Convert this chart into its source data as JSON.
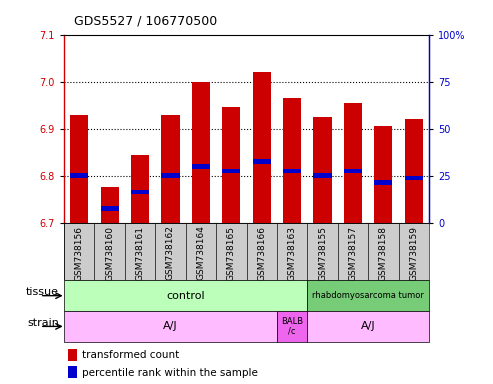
{
  "title": "GDS5527 / 106770500",
  "samples": [
    "GSM738156",
    "GSM738160",
    "GSM738161",
    "GSM738162",
    "GSM738164",
    "GSM738165",
    "GSM738166",
    "GSM738163",
    "GSM738155",
    "GSM738157",
    "GSM738158",
    "GSM738159"
  ],
  "bar_bottom": 6.7,
  "bar_tops": [
    6.93,
    6.775,
    6.845,
    6.93,
    7.0,
    6.945,
    7.02,
    6.965,
    6.925,
    6.955,
    6.905,
    6.92
  ],
  "percentile_values": [
    6.8,
    6.73,
    6.765,
    6.8,
    6.82,
    6.81,
    6.83,
    6.81,
    6.8,
    6.81,
    6.785,
    6.795
  ],
  "ylim_left": [
    6.7,
    7.1
  ],
  "ylim_right": [
    0,
    100
  ],
  "yticks_left": [
    6.7,
    6.8,
    6.9,
    7.0,
    7.1
  ],
  "yticks_right": [
    0,
    25,
    50,
    75,
    100
  ],
  "bar_color": "#cc0000",
  "percentile_color": "#0000cc",
  "tissue_row_color_control": "#bbffbb",
  "tissue_row_color_tumor": "#77cc77",
  "strain_row_color_aj": "#ffbbff",
  "strain_row_color_balb": "#ee66ee",
  "bar_width": 0.6,
  "background_color": "#ffffff",
  "label_bg_color": "#cccccc",
  "grid_color": "#000000",
  "grid_linestyle": "dotted",
  "grid_linewidth": 0.8,
  "border_color": "#000000",
  "tick_label_fontsize": 7,
  "axis_label_fontsize": 8,
  "title_fontsize": 9,
  "legend_fontsize": 7.5
}
